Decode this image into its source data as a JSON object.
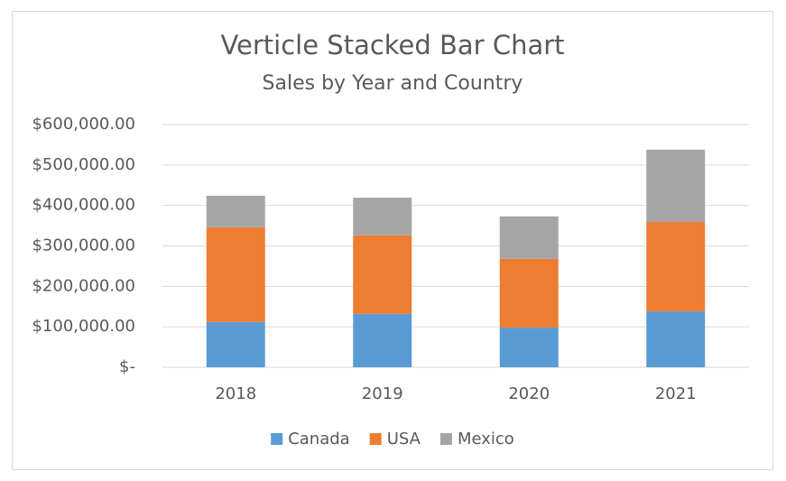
{
  "chart_data": {
    "type": "stacked_bar",
    "title": "Verticle Stacked Bar Chart",
    "subtitle": "Sales by Year and Country",
    "categories": [
      "2018",
      "2019",
      "2020",
      "2021"
    ],
    "series": [
      {
        "name": "Canada",
        "color": "#5b9bd5",
        "values": [
          112000,
          132000,
          98000,
          138000
        ]
      },
      {
        "name": "USA",
        "color": "#ed7d31",
        "values": [
          234000,
          194000,
          170000,
          221000
        ]
      },
      {
        "name": "Mexico",
        "color": "#a5a5a5",
        "values": [
          78000,
          93000,
          105000,
          179000
        ]
      }
    ],
    "ylim": [
      0,
      600000
    ],
    "yticks": [
      {
        "value": 0,
        "label": "$-"
      },
      {
        "value": 100000,
        "label": "$100,000.00"
      },
      {
        "value": 200000,
        "label": "$200,000.00"
      },
      {
        "value": 300000,
        "label": "$300,000.00"
      },
      {
        "value": 400000,
        "label": "$400,000.00"
      },
      {
        "value": 500000,
        "label": "$500,000.00"
      },
      {
        "value": 600000,
        "label": "$600,000.00"
      }
    ],
    "grid": true,
    "legend": "bottom"
  }
}
